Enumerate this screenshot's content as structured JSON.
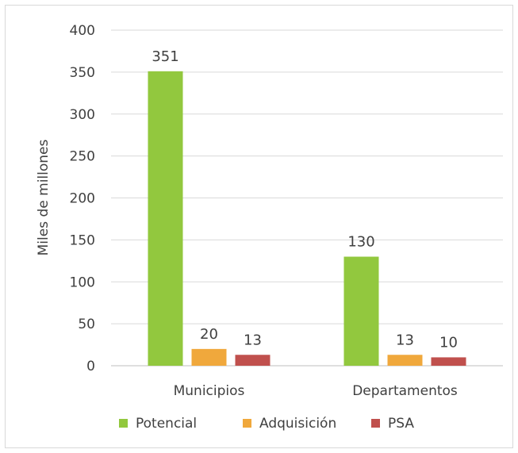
{
  "chart_data": {
    "type": "bar",
    "categories": [
      "Municipios",
      "Departamentos"
    ],
    "series": [
      {
        "name": "Potencial",
        "values": [
          351,
          130
        ],
        "color": "#92c83e"
      },
      {
        "name": "Adquisición",
        "values": [
          20,
          13
        ],
        "color": "#f0a83c"
      },
      {
        "name": "PSA",
        "values": [
          13,
          10
        ],
        "color": "#c0504d"
      }
    ],
    "title": "",
    "xlabel": "",
    "ylabel": "Miles de millones",
    "ylim": [
      0,
      400
    ],
    "yticks": [
      0,
      50,
      100,
      150,
      200,
      250,
      300,
      350,
      400
    ],
    "grid": true,
    "legend": "bottom"
  }
}
